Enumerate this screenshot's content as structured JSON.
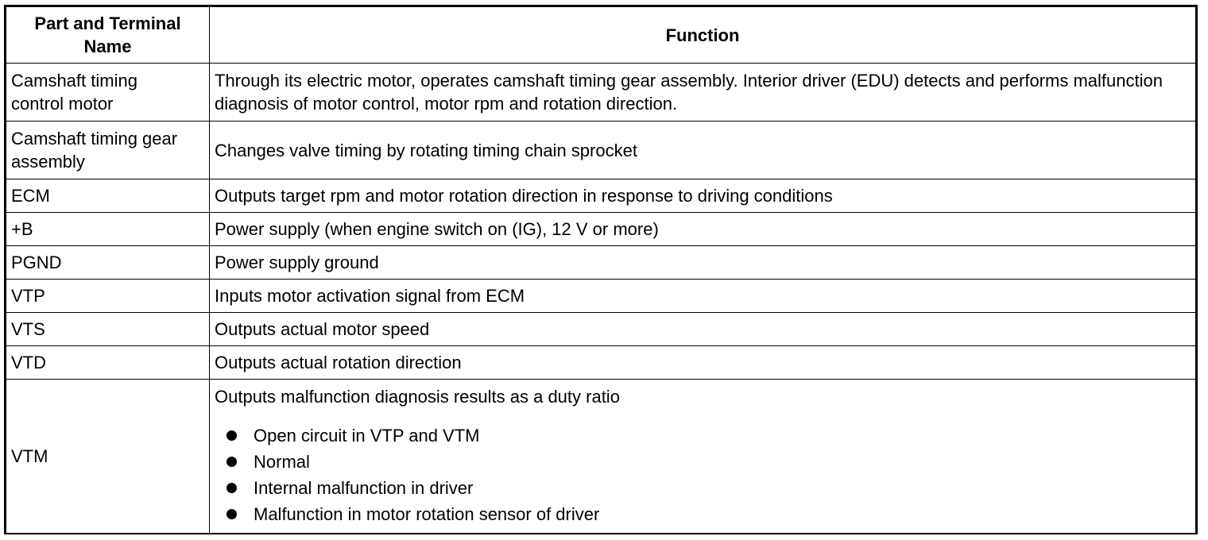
{
  "table": {
    "headers": [
      "Part and Terminal Name",
      "Function"
    ],
    "rows": [
      {
        "name": "Camshaft timing control motor",
        "function": "Through its electric motor, operates camshaft timing gear assembly. Interior driver (EDU) detects and performs malfunction diagnosis of motor control, motor rpm and rotation direction."
      },
      {
        "name": "Camshaft timing gear assembly",
        "function": "Changes valve timing by rotating timing chain sprocket"
      },
      {
        "name": "ECM",
        "function": "Outputs target rpm and motor rotation direction in response to driving conditions"
      },
      {
        "name": "+B",
        "function": "Power supply (when engine switch on (IG), 12 V or more)"
      },
      {
        "name": "PGND",
        "function": "Power supply ground"
      },
      {
        "name": "VTP",
        "function": "Inputs motor activation signal from ECM"
      },
      {
        "name": "VTS",
        "function": "Outputs actual motor speed"
      },
      {
        "name": "VTD",
        "function": "Outputs actual rotation direction"
      }
    ],
    "last_row": {
      "name": "VTM",
      "function_intro": "Outputs malfunction diagnosis results as a duty ratio",
      "bullets": [
        "Open circuit in VTP and VTM",
        "Normal",
        "Internal malfunction in driver",
        "Malfunction in motor rotation sensor of driver"
      ]
    }
  }
}
